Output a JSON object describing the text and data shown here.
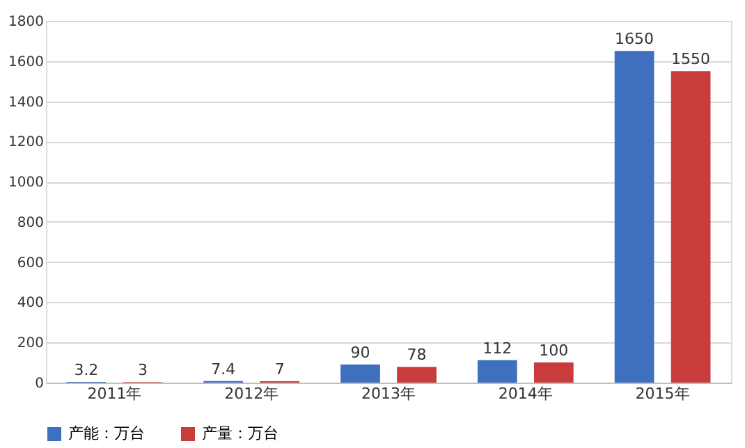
{
  "chart_data": {
    "type": "bar",
    "categories": [
      "2011年",
      "2012年",
      "2013年",
      "2014年",
      "2015年"
    ],
    "series": [
      {
        "name": "产能：万台",
        "color": "#3f6fbf",
        "values": [
          3.2,
          7.4,
          90,
          112,
          1650
        ]
      },
      {
        "name": "产量：万台",
        "color": "#c83c3c",
        "values": [
          3,
          7,
          78,
          100,
          1550
        ]
      }
    ],
    "ylim": [
      0,
      1800
    ],
    "yticks": [
      0,
      200,
      400,
      600,
      800,
      1000,
      1200,
      1400,
      1600,
      1800
    ],
    "grid": "y",
    "legend": "bottom",
    "data_labels": true
  }
}
